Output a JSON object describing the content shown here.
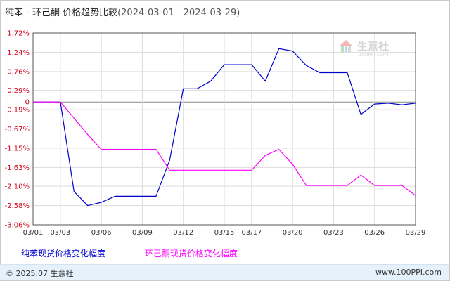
{
  "title": {
    "main": "纯苯 - 环己酮 价格趋势比较",
    "range": "(2024-03-01 - 2024-03-29)"
  },
  "watermark": {
    "name": "生意社",
    "url": "100PPI.COM"
  },
  "footer": {
    "copyright": "© 2025.07 生意社",
    "site": "www.100PPI.com"
  },
  "chart_data": {
    "type": "line",
    "title": "纯苯 - 环己酮 价格趋势比较",
    "ylim": [
      -3.06,
      1.72
    ],
    "yticks": [
      "1.72%",
      "1.24%",
      "0.76%",
      "0.29%",
      "0",
      "-0.19%",
      "-0.67%",
      "-1.15%",
      "-1.63%",
      "-2.10%",
      "-2.58%",
      "-3.06%"
    ],
    "ytick_values": [
      1.72,
      1.24,
      0.76,
      0.29,
      0,
      -0.19,
      -0.67,
      -1.15,
      -1.63,
      -2.1,
      -2.58,
      -3.06
    ],
    "xlim": [
      "03/01",
      "03/29"
    ],
    "xticks": [
      "03/01",
      "03/03",
      "03/06",
      "03/09",
      "03/12",
      "03/15",
      "03/17",
      "03/20",
      "03/23",
      "03/26",
      "03/29"
    ],
    "grid": true,
    "legend_position": "bottom",
    "series": [
      {
        "name": "纯苯现货价格变化幅度",
        "color": "#0000cc",
        "points": [
          [
            "03/01",
            0.0
          ],
          [
            "03/03",
            0.0
          ],
          [
            "03/04",
            -2.23
          ],
          [
            "03/05",
            -2.58
          ],
          [
            "03/06",
            -2.5
          ],
          [
            "03/07",
            -2.35
          ],
          [
            "03/08",
            -2.35
          ],
          [
            "03/09",
            -2.35
          ],
          [
            "03/10",
            -2.35
          ],
          [
            "03/11",
            -1.45
          ],
          [
            "03/12",
            0.33
          ],
          [
            "03/13",
            0.33
          ],
          [
            "03/14",
            0.52
          ],
          [
            "03/15",
            0.93
          ],
          [
            "03/16",
            0.93
          ],
          [
            "03/17",
            0.93
          ],
          [
            "03/18",
            0.52
          ],
          [
            "03/19",
            1.33
          ],
          [
            "03/20",
            1.27
          ],
          [
            "03/21",
            0.91
          ],
          [
            "03/22",
            0.73
          ],
          [
            "03/23",
            0.73
          ],
          [
            "03/24",
            0.73
          ],
          [
            "03/25",
            -0.31
          ],
          [
            "03/26",
            -0.05
          ],
          [
            "03/27",
            -0.03
          ],
          [
            "03/28",
            -0.07
          ],
          [
            "03/29",
            -0.03
          ]
        ]
      },
      {
        "name": "环己酮现货价格变化幅度",
        "color": "#ff00ff",
        "points": [
          [
            "03/01",
            0.0
          ],
          [
            "03/03",
            0.0
          ],
          [
            "03/04",
            -0.4
          ],
          [
            "03/05",
            -0.81
          ],
          [
            "03/06",
            -1.18
          ],
          [
            "03/07",
            -1.18
          ],
          [
            "03/08",
            -1.18
          ],
          [
            "03/09",
            -1.18
          ],
          [
            "03/10",
            -1.18
          ],
          [
            "03/11",
            -1.7
          ],
          [
            "03/12",
            -1.7
          ],
          [
            "03/13",
            -1.7
          ],
          [
            "03/14",
            -1.7
          ],
          [
            "03/15",
            -1.7
          ],
          [
            "03/16",
            -1.7
          ],
          [
            "03/17",
            -1.7
          ],
          [
            "03/18",
            -1.33
          ],
          [
            "03/19",
            -1.18
          ],
          [
            "03/20",
            -1.55
          ],
          [
            "03/21",
            -2.08
          ],
          [
            "03/22",
            -2.08
          ],
          [
            "03/23",
            -2.08
          ],
          [
            "03/24",
            -2.08
          ],
          [
            "03/25",
            -1.82
          ],
          [
            "03/26",
            -2.08
          ],
          [
            "03/27",
            -2.08
          ],
          [
            "03/28",
            -2.08
          ],
          [
            "03/29",
            -2.33
          ]
        ]
      }
    ]
  }
}
